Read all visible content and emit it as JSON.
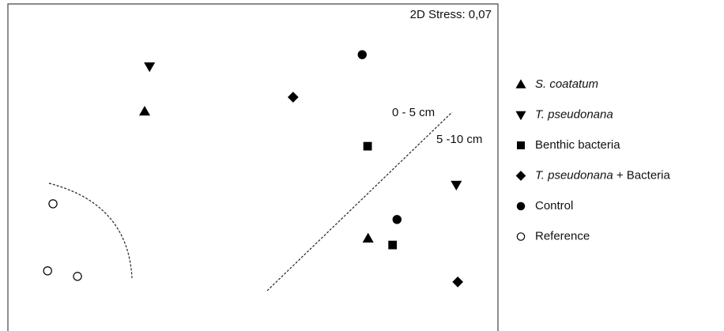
{
  "chart_data": {
    "type": "scatter",
    "annotations": [
      "2D Stress: 0,07",
      "0 - 5 cm",
      "5 -10 cm"
    ],
    "xlim": [
      0,
      100
    ],
    "ylim": [
      0,
      100
    ],
    "series": [
      {
        "name": "S. coatatum",
        "marker": "triangle-up",
        "filled": true,
        "color": "#000000",
        "x": [
          27.9,
          73.5
        ],
        "values": [
          67.1,
          28.3
        ]
      },
      {
        "name": "T. pseudonana",
        "marker": "triangle-down",
        "filled": true,
        "color": "#000000",
        "x": [
          28.9,
          91.5
        ],
        "values": [
          80.9,
          44.7
        ]
      },
      {
        "name": "Benthic bacteria",
        "marker": "square",
        "filled": true,
        "color": "#000000",
        "x": [
          73.4,
          78.5
        ],
        "values": [
          56.5,
          26.3
        ]
      },
      {
        "name": "T. pseudonana + Bacteria",
        "marker": "diamond",
        "filled": true,
        "color": "#000000",
        "x": [
          58.2,
          91.8
        ],
        "values": [
          71.5,
          15.0
        ]
      },
      {
        "name": "Control",
        "marker": "circle",
        "filled": true,
        "color": "#000000",
        "x": [
          72.3,
          79.4
        ],
        "values": [
          84.5,
          34.1
        ]
      },
      {
        "name": "Reference",
        "marker": "circle",
        "filled": false,
        "color": "#000000",
        "x": [
          9.2,
          8.1,
          14.2
        ],
        "values": [
          38.9,
          18.4,
          16.7
        ]
      }
    ]
  }
}
